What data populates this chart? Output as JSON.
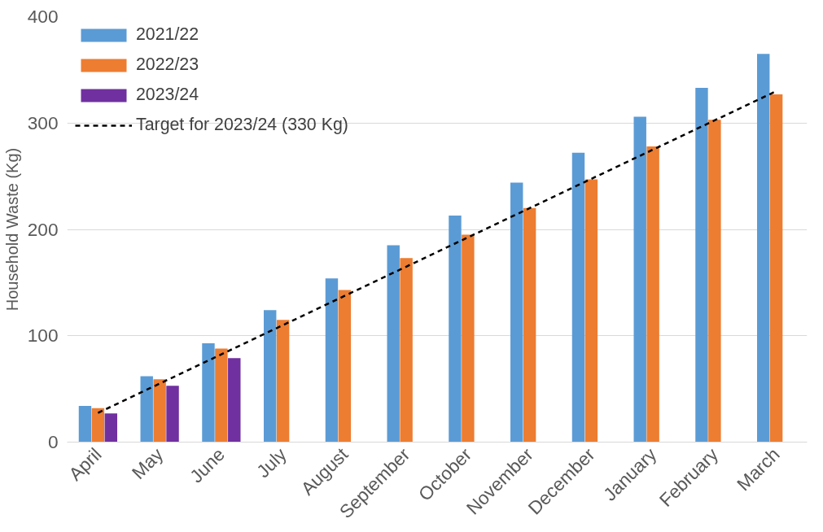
{
  "chart_data": {
    "type": "bar",
    "ylabel": "Household Waste (Kg)",
    "categories": [
      "April",
      "May",
      "June",
      "July",
      "August",
      "September",
      "October",
      "November",
      "December",
      "January",
      "February",
      "March"
    ],
    "series": [
      {
        "name": "2021/22",
        "color": "#5b9bd5",
        "values": [
          34,
          62,
          93,
          124,
          154,
          185,
          213,
          244,
          272,
          306,
          333,
          365
        ]
      },
      {
        "name": "2022/23",
        "color": "#ed7d31",
        "values": [
          32,
          59,
          88,
          115,
          143,
          173,
          195,
          220,
          247,
          278,
          303,
          327
        ]
      },
      {
        "name": "2023/24",
        "color": "#7030a0",
        "values": [
          27,
          53,
          79,
          null,
          null,
          null,
          null,
          null,
          null,
          null,
          null,
          null
        ]
      },
      {
        "name": "Target for 2023/24 (330 Kg)",
        "type": "line",
        "line_style": "dashed",
        "color": "#000000",
        "values": [
          27.5,
          55,
          82.5,
          110,
          137.5,
          165,
          192.5,
          220,
          247.5,
          275,
          302.5,
          330
        ]
      }
    ],
    "ylim": [
      0,
      400
    ],
    "yticks": [
      0,
      100,
      200,
      300,
      400
    ],
    "grid": "y",
    "legend": "top left"
  }
}
